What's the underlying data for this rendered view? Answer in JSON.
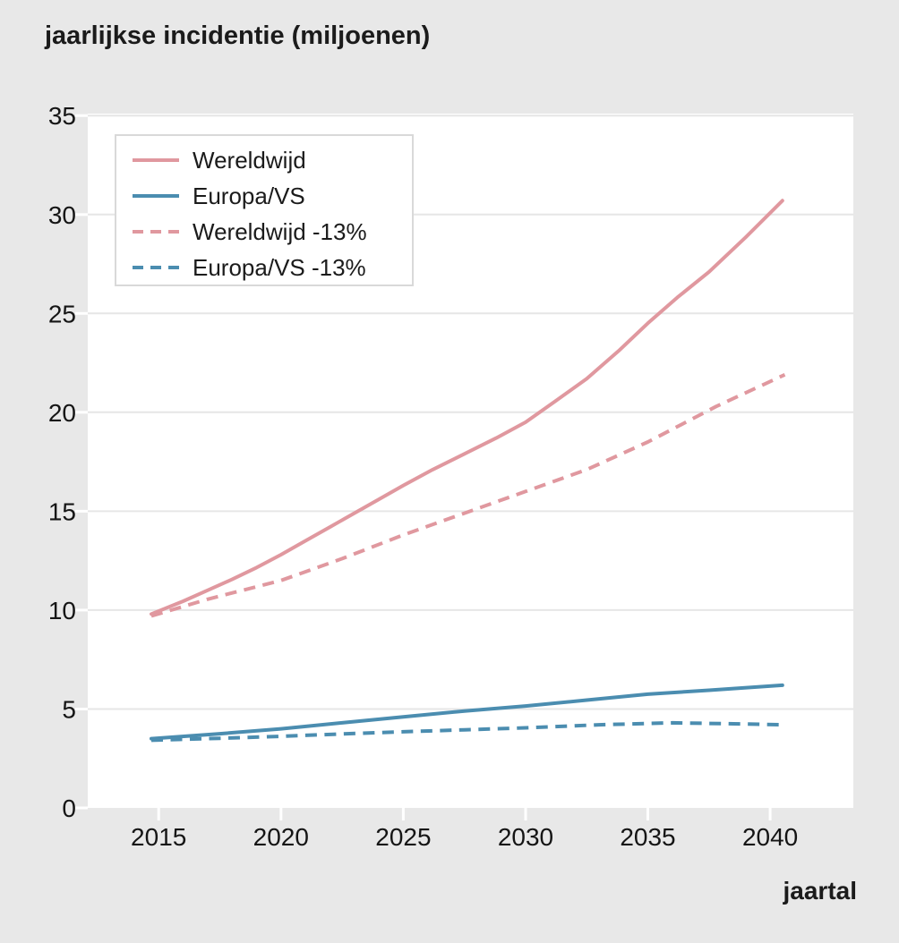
{
  "title": "jaarlijkse incidentie (miljoenen)",
  "x_axis_label": "jaartal",
  "colors": {
    "background": "#e8e8e8",
    "plot_background": "#ffffff",
    "gridline": "#e6e6e6",
    "tick_mark": "#ffffff",
    "text": "#1b1b1b",
    "series_pink": "#e0989f",
    "series_blue": "#4b8db0"
  },
  "chart_data": {
    "type": "line",
    "title": "jaarlijkse incidentie (miljoenen)",
    "xlabel": "jaartal",
    "ylabel": "jaarlijkse incidentie (miljoenen)",
    "x_ticks": [
      2015,
      2020,
      2025,
      2030,
      2035,
      2040
    ],
    "y_ticks": [
      0,
      5,
      10,
      15,
      20,
      25,
      30,
      35
    ],
    "xlim": [
      2012.1,
      2043.4
    ],
    "ylim": [
      0,
      35.1
    ],
    "grid": "horizontal-only",
    "legend_position": "top-left",
    "series": [
      {
        "name": "Wereldwijd",
        "color": "#e0989f",
        "style": "solid",
        "points": [
          [
            2014.7,
            9.8
          ],
          [
            2016,
            10.45
          ],
          [
            2017,
            11.0
          ],
          [
            2018,
            11.55
          ],
          [
            2019,
            12.15
          ],
          [
            2020,
            12.8
          ],
          [
            2021,
            13.5
          ],
          [
            2022,
            14.2
          ],
          [
            2023,
            14.9
          ],
          [
            2024,
            15.6
          ],
          [
            2025,
            16.3
          ],
          [
            2026.2,
            17.1
          ],
          [
            2027.5,
            17.9
          ],
          [
            2028.8,
            18.7
          ],
          [
            2030,
            19.5
          ],
          [
            2031.2,
            20.55
          ],
          [
            2032.5,
            21.7
          ],
          [
            2033.8,
            23.1
          ],
          [
            2035,
            24.5
          ],
          [
            2036.2,
            25.8
          ],
          [
            2037.5,
            27.1
          ],
          [
            2039,
            28.85
          ],
          [
            2040.5,
            30.7
          ]
        ]
      },
      {
        "name": "Europa/VS",
        "color": "#4b8db0",
        "style": "solid",
        "points": [
          [
            2014.7,
            3.5
          ],
          [
            2017.5,
            3.75
          ],
          [
            2020,
            4.0
          ],
          [
            2022.5,
            4.3
          ],
          [
            2025,
            4.6
          ],
          [
            2027.5,
            4.9
          ],
          [
            2030,
            5.15
          ],
          [
            2032.5,
            5.45
          ],
          [
            2035,
            5.75
          ],
          [
            2037.5,
            5.95
          ],
          [
            2040.5,
            6.2
          ]
        ]
      },
      {
        "name": "Wereldwijd -13%",
        "color": "#e0989f",
        "style": "dashed",
        "points": [
          [
            2014.7,
            9.7
          ],
          [
            2017,
            10.55
          ],
          [
            2020,
            11.5
          ],
          [
            2022.5,
            12.6
          ],
          [
            2025,
            13.8
          ],
          [
            2027.5,
            14.9
          ],
          [
            2030,
            16.0
          ],
          [
            2032.5,
            17.1
          ],
          [
            2035,
            18.5
          ],
          [
            2037.8,
            20.3
          ],
          [
            2040.6,
            21.9
          ]
        ]
      },
      {
        "name": "Europa/VS -13%",
        "color": "#4b8db0",
        "style": "dashed",
        "points": [
          [
            2014.7,
            3.42
          ],
          [
            2017.5,
            3.52
          ],
          [
            2020,
            3.62
          ],
          [
            2022.5,
            3.74
          ],
          [
            2025,
            3.85
          ],
          [
            2027.5,
            3.95
          ],
          [
            2030,
            4.05
          ],
          [
            2033,
            4.2
          ],
          [
            2036,
            4.3
          ],
          [
            2038.5,
            4.25
          ],
          [
            2040.6,
            4.2
          ]
        ]
      }
    ]
  }
}
